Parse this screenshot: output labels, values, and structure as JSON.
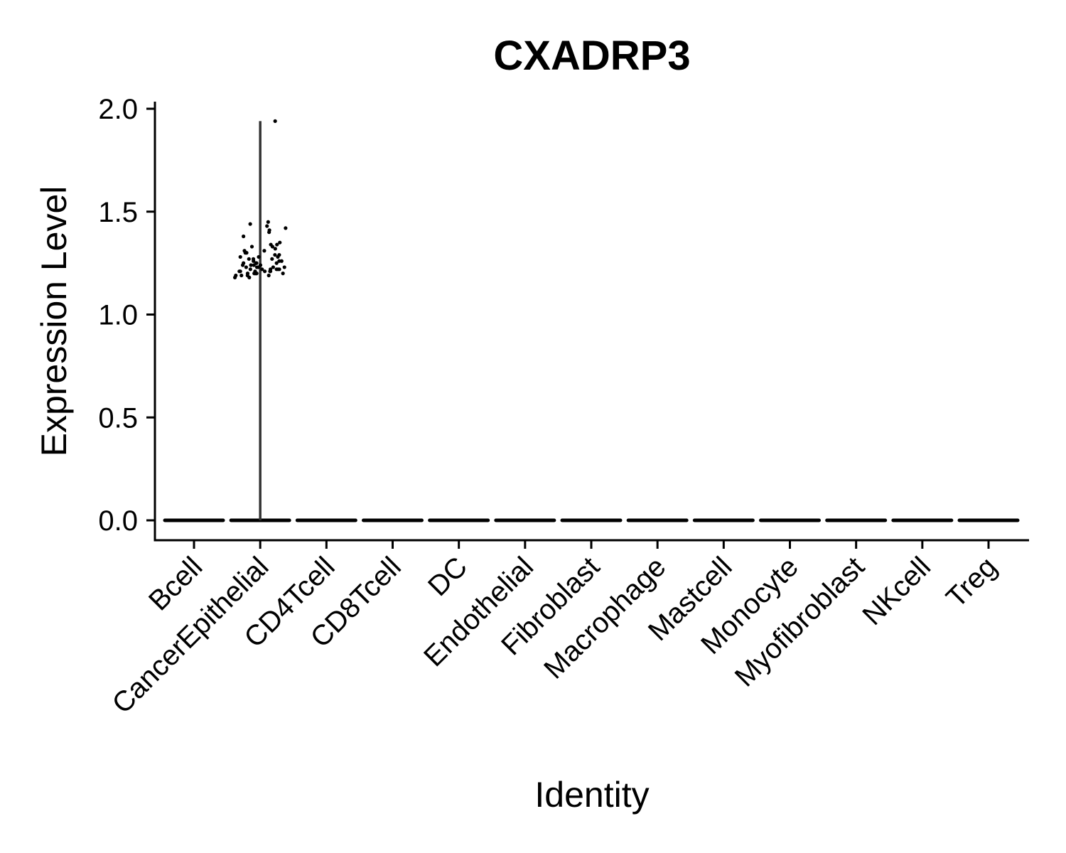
{
  "chart_data": {
    "type": "violin",
    "title": "CXADRP3",
    "xlabel": "Identity",
    "ylabel": "Expression Level",
    "ylim": [
      -0.1,
      2.05
    ],
    "yticks": [
      0.0,
      0.5,
      1.0,
      1.5,
      2.0
    ],
    "ytick_labels": [
      "0.0",
      "0.5",
      "1.0",
      "1.5",
      "2.0"
    ],
    "grid": false,
    "legend": "none",
    "categories": [
      "Bcell",
      "CancerEpithelial",
      "CD4Tcell",
      "CD8Tcell",
      "DC",
      "Endothelial",
      "Fibroblast",
      "Macrophage",
      "Mastcell",
      "Monocyte",
      "Myofibroblast",
      "NKcell",
      "Treg"
    ],
    "series": [
      {
        "category": "Bcell",
        "max": 0.0,
        "expressing_points": []
      },
      {
        "category": "CancerEpithelial",
        "max": 1.94,
        "expressing_points": [
          1.94,
          1.45,
          1.44,
          1.43,
          1.42,
          1.41,
          1.4,
          1.38,
          1.35,
          1.34,
          1.34,
          1.33,
          1.33,
          1.32,
          1.31,
          1.31,
          1.3,
          1.3,
          1.29,
          1.29,
          1.28,
          1.28,
          1.28,
          1.27,
          1.27,
          1.27,
          1.26,
          1.26,
          1.26,
          1.25,
          1.25,
          1.25,
          1.25,
          1.24,
          1.24,
          1.24,
          1.24,
          1.23,
          1.23,
          1.23,
          1.23,
          1.23,
          1.22,
          1.22,
          1.22,
          1.22,
          1.22,
          1.22,
          1.21,
          1.21,
          1.21,
          1.21,
          1.21,
          1.21,
          1.2,
          1.2,
          1.2,
          1.2,
          1.2,
          1.2,
          1.19,
          1.19,
          1.19,
          1.19,
          1.18,
          1.18
        ]
      },
      {
        "category": "CD4Tcell",
        "max": 0.0,
        "expressing_points": []
      },
      {
        "category": "CD8Tcell",
        "max": 0.0,
        "expressing_points": []
      },
      {
        "category": "DC",
        "max": 0.0,
        "expressing_points": []
      },
      {
        "category": "Endothelial",
        "max": 0.0,
        "expressing_points": []
      },
      {
        "category": "Fibroblast",
        "max": 0.0,
        "expressing_points": []
      },
      {
        "category": "Macrophage",
        "max": 0.0,
        "expressing_points": []
      },
      {
        "category": "Mastcell",
        "max": 0.0,
        "expressing_points": []
      },
      {
        "category": "Monocyte",
        "max": 0.0,
        "expressing_points": []
      },
      {
        "category": "Myofibroblast",
        "max": 0.0,
        "expressing_points": []
      },
      {
        "category": "NKcell",
        "max": 0.0,
        "expressing_points": []
      },
      {
        "category": "Treg",
        "max": 0.0,
        "expressing_points": []
      }
    ],
    "colors": {
      "points": "#000000",
      "violin": "#333333",
      "axis": "#000000"
    }
  }
}
